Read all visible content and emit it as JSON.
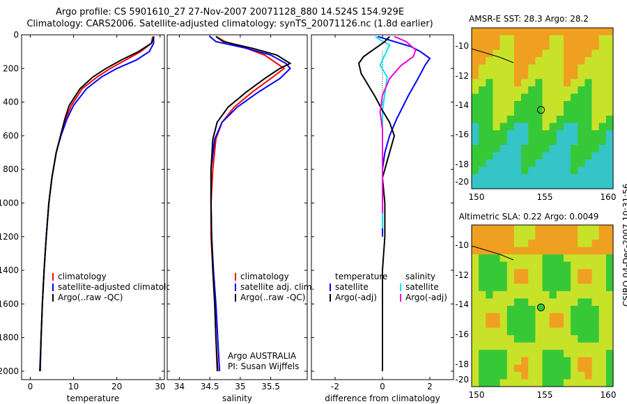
{
  "title_line1": "Argo profile: CS 5901610_27 27-Nov-2007 20071128_880 14.524S 154.929E",
  "title_line2": "Climatology: CARS2006. Satellite-adjusted climatology: synTS_20071126.nc (1.8d earlier)",
  "colors": {
    "climatology": "#ff0000",
    "satellite": "#0000ff",
    "argo": "#000000",
    "sat_diff": "#00e5ee",
    "argo_diff": "#ee00dd"
  },
  "chart_data": [
    {
      "type": "line",
      "xlabel": "temperature",
      "xlim": [
        -2,
        31
      ],
      "ylim": [
        2050,
        0
      ],
      "xticks": [
        0,
        10,
        20,
        30
      ],
      "yticks": [
        0,
        200,
        400,
        600,
        800,
        1000,
        1200,
        1400,
        1600,
        1800,
        2000
      ],
      "series": [
        {
          "name": "climatology",
          "color": "#ff0000",
          "x": [
            28.3,
            28.0,
            25.5,
            22.0,
            18.5,
            15.5,
            12.0,
            9.5,
            8.2,
            7.0,
            6.0,
            5.0,
            4.3,
            3.7,
            3.2,
            2.8,
            2.5,
            2.3
          ],
          "y": [
            10,
            50,
            100,
            150,
            200,
            250,
            320,
            420,
            500,
            600,
            700,
            850,
            1000,
            1200,
            1400,
            1600,
            1800,
            2000
          ]
        },
        {
          "name": "satellite-adjusted climatology",
          "color": "#0000ff",
          "x": [
            28.5,
            28.5,
            27.5,
            24.5,
            20.0,
            16.5,
            13.0,
            10.0,
            8.5,
            7.1,
            6.0,
            5.0,
            4.3,
            3.7,
            3.2,
            2.8,
            2.5,
            2.3
          ],
          "y": [
            10,
            50,
            100,
            150,
            200,
            250,
            320,
            420,
            500,
            600,
            700,
            850,
            1000,
            1200,
            1400,
            1600,
            1800,
            2000
          ]
        },
        {
          "name": "Argo(..raw -QC)",
          "color": "#000000",
          "x": [
            28.6,
            28.0,
            25.0,
            21.0,
            17.5,
            14.5,
            11.5,
            9.0,
            8.0,
            7.0,
            6.0,
            5.0,
            4.3,
            3.7,
            3.2,
            2.8,
            2.5,
            2.2
          ],
          "y": [
            10,
            50,
            100,
            150,
            200,
            250,
            320,
            420,
            500,
            600,
            700,
            850,
            1000,
            1200,
            1400,
            1600,
            1800,
            2000
          ]
        }
      ],
      "legend": [
        "climatology",
        "satellite-adjusted climatology",
        "Argo(..raw -QC)"
      ]
    },
    {
      "type": "line",
      "xlabel": "salinity",
      "xlim": [
        33.8,
        36.1
      ],
      "ylim": [
        2050,
        0
      ],
      "xticks": [
        34,
        34.5,
        35,
        35.5
      ],
      "series": [
        {
          "name": "climatology",
          "color": "#ff0000",
          "x": [
            34.6,
            34.75,
            35.1,
            35.4,
            35.6,
            35.72,
            35.5,
            35.2,
            34.9,
            34.7,
            34.6,
            34.55,
            34.52,
            34.52,
            34.55,
            34.58,
            34.6,
            34.62
          ],
          "y": [
            10,
            40,
            80,
            120,
            170,
            200,
            260,
            340,
            430,
            520,
            620,
            800,
            1000,
            1200,
            1400,
            1600,
            1800,
            2000
          ]
        },
        {
          "name": "satellite adj. clim.",
          "color": "#0000ff",
          "x": [
            34.5,
            34.6,
            35.1,
            35.5,
            35.75,
            35.82,
            35.65,
            35.3,
            34.95,
            34.7,
            34.58,
            34.52,
            34.52,
            34.53,
            34.56,
            34.6,
            34.63,
            34.66
          ],
          "y": [
            10,
            40,
            80,
            120,
            170,
            200,
            260,
            340,
            430,
            520,
            620,
            800,
            1000,
            1200,
            1400,
            1600,
            1800,
            2000
          ]
        },
        {
          "name": "Argo(..raw -QC)",
          "color": "#000000",
          "x": [
            34.6,
            34.72,
            35.2,
            35.6,
            35.82,
            35.65,
            35.4,
            35.1,
            34.8,
            34.62,
            34.55,
            34.52,
            34.52,
            34.53,
            34.55,
            34.58,
            34.6,
            34.63
          ],
          "y": [
            10,
            40,
            80,
            120,
            170,
            200,
            260,
            340,
            430,
            520,
            620,
            800,
            1000,
            1200,
            1400,
            1600,
            1800,
            2000
          ]
        }
      ],
      "legend": [
        "climatology",
        "satellite adj. clim.",
        "Argo(..raw -QC)"
      ],
      "annotations": [
        "Argo AUSTRALIA",
        "PI: Susan Wijffels"
      ]
    },
    {
      "type": "line",
      "xlabel": "difference from climatology",
      "xlim": [
        -3,
        3
      ],
      "ylim": [
        2050,
        0
      ],
      "xticks": [
        -2,
        0,
        2
      ],
      "series": [
        {
          "name": "temperature satellite",
          "color": "#0000ff",
          "x": [
            -0.2,
            0.5,
            1.2,
            1.6,
            2.0,
            1.8,
            1.5,
            1.1,
            0.6,
            0.3,
            0.1,
            0,
            0,
            0,
            0,
            0
          ],
          "y": [
            10,
            40,
            70,
            100,
            140,
            180,
            260,
            360,
            500,
            600,
            700,
            800,
            900,
            1000,
            1100,
            1200
          ]
        },
        {
          "name": "salinity satellite",
          "color": "#00e5ee",
          "x": [
            -0.3,
            -0.1,
            0.3,
            0.2,
            0.1,
            0.0,
            -0.1,
            0.2,
            0.1,
            0.0,
            0,
            0,
            0,
            0,
            0,
            0,
            0
          ],
          "y": [
            10,
            30,
            60,
            90,
            120,
            150,
            180,
            250,
            350,
            450,
            550,
            650,
            750,
            850,
            950,
            1050,
            1150
          ]
        },
        {
          "name": "temperature Argo(-adj)",
          "color": "#000000",
          "x": [
            0.3,
            0.1,
            -0.2,
            -0.5,
            -0.8,
            -1.0,
            -0.9,
            -0.6,
            -0.3,
            0.0,
            0.3,
            0.5,
            0.3,
            0.0,
            0.1,
            0.1,
            0,
            0,
            0,
            0
          ],
          "y": [
            10,
            40,
            70,
            100,
            130,
            170,
            230,
            300,
            370,
            450,
            520,
            600,
            700,
            850,
            1000,
            1200,
            1400,
            1600,
            1800,
            2000
          ]
        },
        {
          "name": "salinity Argo(-adj)",
          "color": "#ee00dd",
          "x": [
            0.5,
            1.0,
            1.4,
            1.3,
            0.8,
            0.3,
            0.0,
            -0.1,
            0.0,
            0.0,
            0.0,
            0.0,
            0.0,
            0.0
          ],
          "y": [
            10,
            40,
            90,
            130,
            180,
            260,
            360,
            460,
            560,
            660,
            760,
            860,
            960,
            1060
          ]
        }
      ],
      "legend": [
        "temperature",
        "satellite",
        "Argo(-adj)",
        "salinity",
        "satellite",
        "Argo(-adj)"
      ]
    }
  ],
  "maps": [
    {
      "title": "AMSR-E SST: 28.3 Argo: 28.2",
      "xticks": [
        "150",
        "155",
        "160"
      ],
      "yticks": [
        "-10",
        "-12",
        "-14",
        "-16",
        "-18",
        "-20"
      ]
    },
    {
      "title": "Altimetric SLA: 0.22 Argo: 0.0049",
      "xticks": [
        "150",
        "155",
        "160"
      ],
      "yticks": [
        "-10",
        "-12",
        "-14",
        "-16",
        "-18",
        "-20"
      ]
    }
  ],
  "side_label": "CSIRO 04-Dec-2007 10:31:56"
}
